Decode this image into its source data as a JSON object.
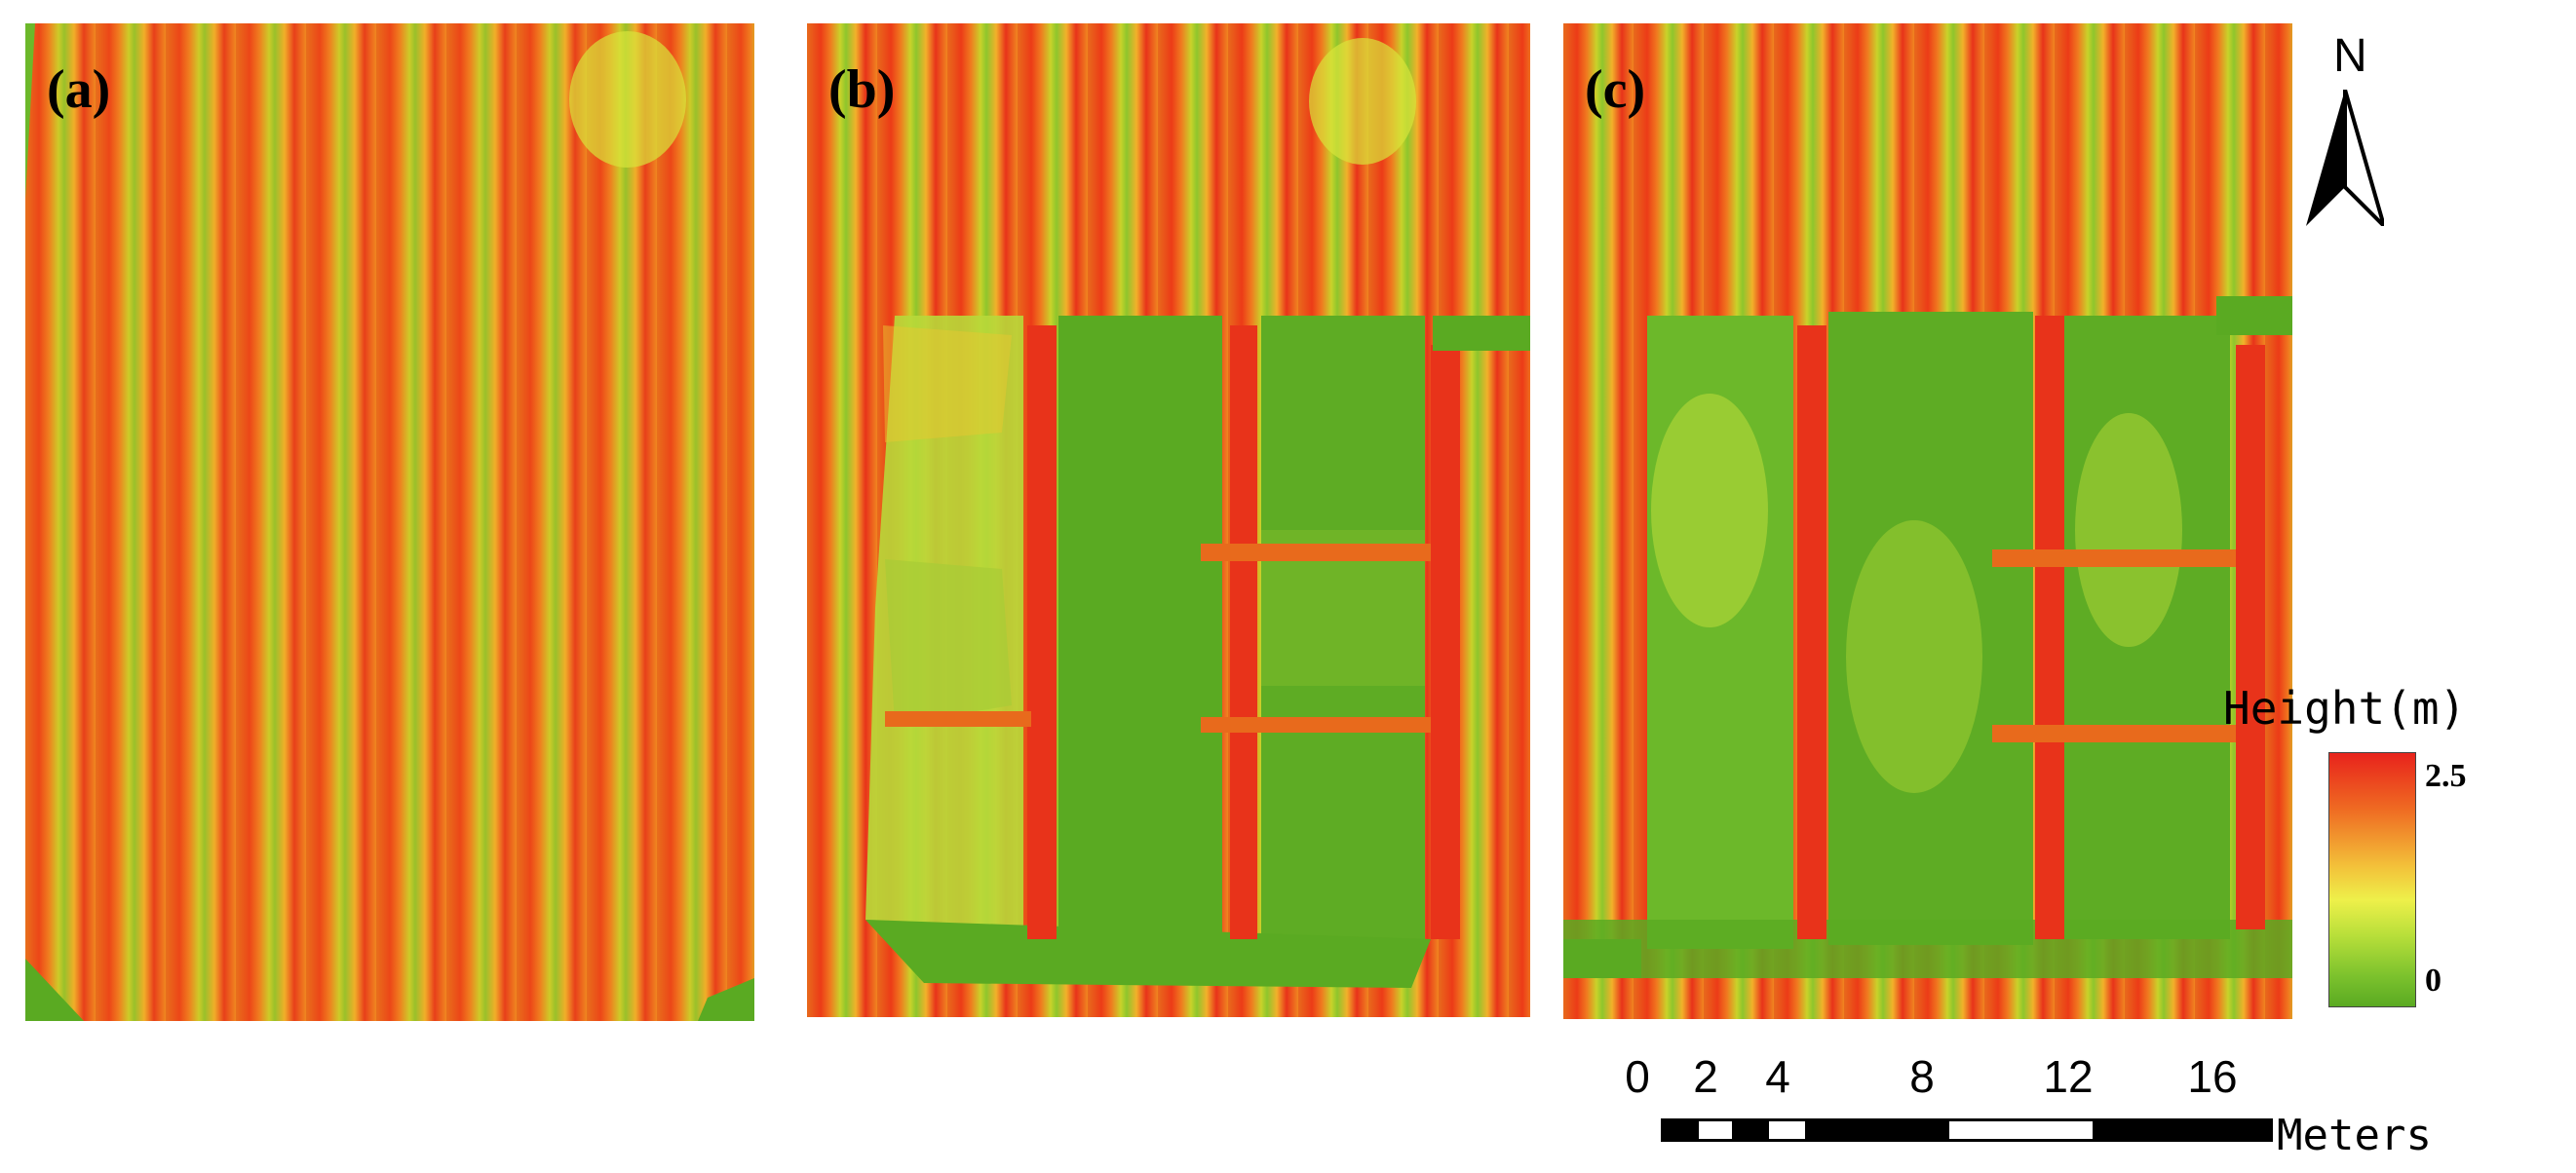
{
  "panels": [
    {
      "label": "(a)"
    },
    {
      "label": "(b)"
    },
    {
      "label": "(c)"
    }
  ],
  "north": {
    "label": "N",
    "icon": "north-arrow-icon"
  },
  "legend": {
    "title": "Height(m)",
    "max_label": "2.5",
    "min_label": "0",
    "colors": [
      "#e8231c",
      "#f3c23a",
      "#eef04a",
      "#5aaa22"
    ]
  },
  "scale": {
    "ticks": [
      "0",
      "2",
      "4",
      "8",
      "12",
      "16"
    ],
    "tick_values": [
      0,
      2,
      4,
      8,
      12,
      16
    ],
    "unit": "Meters"
  }
}
